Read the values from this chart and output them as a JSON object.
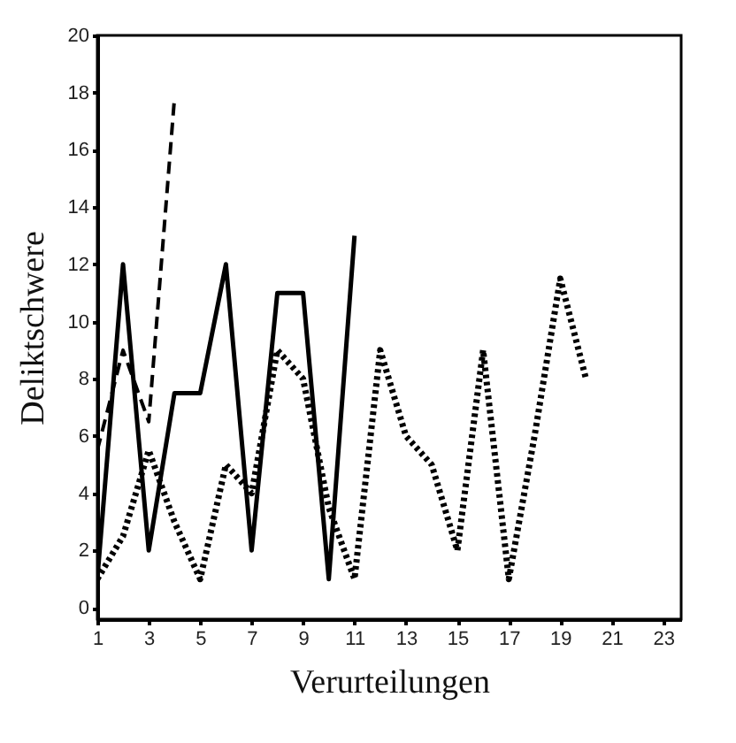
{
  "chart_data": {
    "type": "line",
    "xlabel": "Verurteilungen",
    "ylabel": "Deliktschwere",
    "xlim": [
      1,
      23.7
    ],
    "xticks": [
      1,
      3,
      5,
      7,
      9,
      11,
      13,
      15,
      17,
      19,
      21,
      23
    ],
    "ylim": [
      -0.4,
      20
    ],
    "yticks": [
      0,
      2,
      4,
      6,
      8,
      10,
      12,
      14,
      16,
      18,
      20
    ],
    "grid": false,
    "series": [
      {
        "color": "#000000",
        "line_style": "solid",
        "x": [
          1,
          2,
          3,
          4,
          5,
          6,
          7,
          8,
          9,
          10,
          11
        ],
        "values": [
          1,
          12,
          2,
          7.5,
          7.5,
          12,
          2,
          11,
          11,
          1,
          13
        ]
      },
      {
        "color": "#000000",
        "line_style": "dashed",
        "x": [
          1,
          2,
          3,
          4
        ],
        "values": [
          5.5,
          9,
          6.5,
          17.8
        ]
      },
      {
        "color": "#000000",
        "line_style": "dotted",
        "x": [
          1,
          2,
          3,
          4,
          5,
          6,
          7,
          8,
          9,
          10,
          11,
          12,
          13,
          14,
          15,
          16,
          17,
          18,
          19,
          20
        ],
        "values": [
          1,
          2.5,
          5.5,
          3,
          1,
          5,
          4,
          9,
          8,
          3.5,
          1,
          9,
          6,
          5,
          2,
          9,
          1,
          6,
          11.5,
          8
        ]
      }
    ]
  }
}
